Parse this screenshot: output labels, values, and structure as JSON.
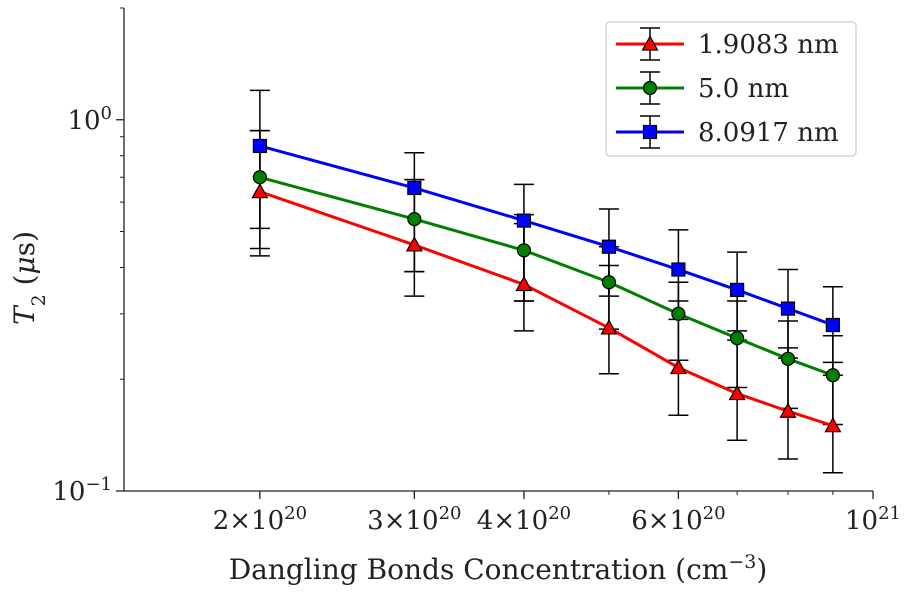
{
  "chart_data": {
    "type": "line",
    "title": "",
    "xlabel": {
      "text": "Dangling Bonds Concentration (cm",
      "sup": "−3",
      "suffix": ")"
    },
    "ylabel": {
      "italic": "T",
      "sub": "2",
      "rest_open": " (",
      "mu": "μ",
      "rest_close": "s)"
    },
    "xscale": "log",
    "yscale": "log",
    "xlim": [
      1.4e+20,
      1e+21
    ],
    "ylim": [
      0.1,
      2.0
    ],
    "grid": false,
    "legend_position": "top-right",
    "x": [
      2e+20,
      3e+20,
      4e+20,
      5e+20,
      6e+20,
      7e+20,
      8e+20,
      9e+20
    ],
    "x_ticks": [
      {
        "value": 2e+20,
        "mant": "2",
        "base": "×10",
        "exp": "20"
      },
      {
        "value": 3e+20,
        "mant": "3",
        "base": "×10",
        "exp": "20"
      },
      {
        "value": 4e+20,
        "mant": "4",
        "base": "×10",
        "exp": "20"
      },
      {
        "value": 6e+20,
        "mant": "6",
        "base": "×10",
        "exp": "20"
      },
      {
        "value": 1e+21,
        "mant": "",
        "base": "10",
        "exp": "21"
      }
    ],
    "y_ticks": [
      {
        "value": 1.0,
        "base": "10",
        "exp": "0"
      },
      {
        "value": 0.1,
        "base": "10",
        "exp": "−1"
      }
    ],
    "series": [
      {
        "name": "1.9083 nm",
        "color": "#ff0000",
        "marker": "triangle",
        "values": [
          0.64,
          0.46,
          0.36,
          0.275,
          0.215,
          0.183,
          0.164,
          0.15
        ],
        "err_low": [
          0.43,
          0.335,
          0.27,
          0.207,
          0.16,
          0.137,
          0.122,
          0.112
        ],
        "err_high": [
          0.935,
          0.69,
          0.525,
          0.405,
          0.325,
          0.27,
          0.243,
          0.222
        ]
      },
      {
        "name": "5.0 nm",
        "color": "#008000",
        "marker": "circle",
        "values": [
          0.7,
          0.54,
          0.445,
          0.365,
          0.3,
          0.258,
          0.227,
          0.205
        ],
        "err_low": [
          0.45,
          0.39,
          0.325,
          0.273,
          0.225,
          0.19,
          0.167,
          0.151
        ],
        "err_high": [
          0.935,
          0.69,
          0.555,
          0.455,
          0.365,
          0.325,
          0.287,
          0.262
        ]
      },
      {
        "name": "8.0917 nm",
        "color": "#0000ff",
        "marker": "square",
        "values": [
          0.85,
          0.655,
          0.535,
          0.455,
          0.395,
          0.348,
          0.31,
          0.28
        ],
        "err_low": [
          0.51,
          0.39,
          0.325,
          0.335,
          0.29,
          0.255,
          0.228,
          0.205
        ],
        "err_high": [
          1.2,
          0.815,
          0.67,
          0.575,
          0.505,
          0.44,
          0.395,
          0.355
        ]
      }
    ]
  }
}
